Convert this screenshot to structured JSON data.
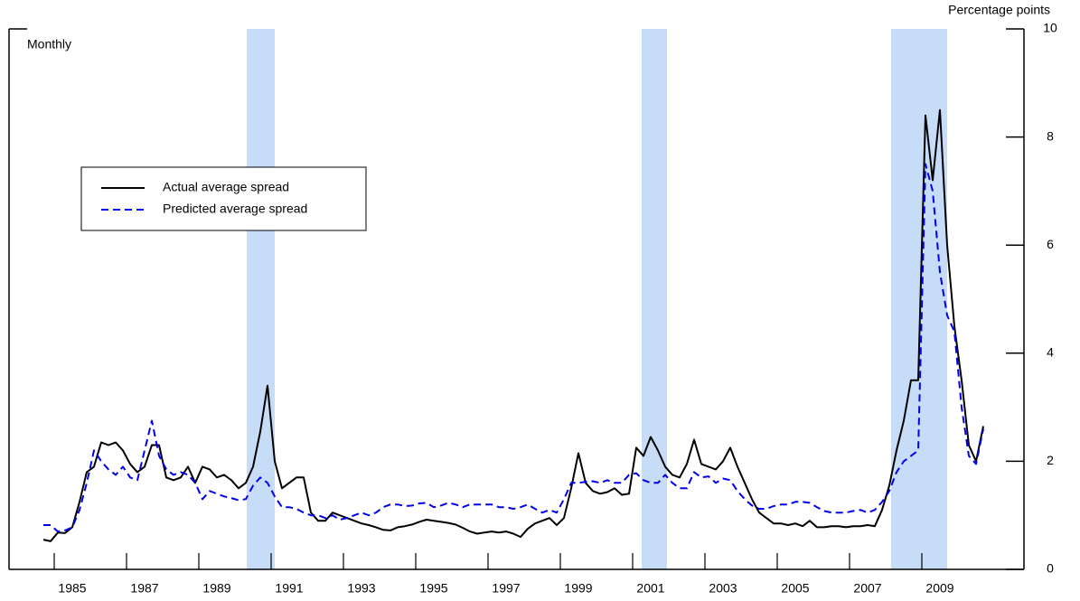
{
  "chart_data": {
    "type": "line",
    "axis_title": "Percentage points",
    "annotation": "Monthly",
    "x": [
      1984.7,
      1984.9,
      1985.1,
      1985.3,
      1985.5,
      1985.7,
      1985.9,
      1986.1,
      1986.3,
      1986.5,
      1986.7,
      1986.9,
      1987.1,
      1987.3,
      1987.5,
      1987.7,
      1987.9,
      1988.1,
      1988.3,
      1988.5,
      1988.7,
      1988.9,
      1989.1,
      1989.3,
      1989.5,
      1989.7,
      1989.9,
      1990.1,
      1990.3,
      1990.5,
      1990.7,
      1990.9,
      1991.1,
      1991.3,
      1991.5,
      1991.7,
      1991.9,
      1992.1,
      1992.3,
      1992.5,
      1992.7,
      1992.9,
      1993.1,
      1993.3,
      1993.5,
      1993.7,
      1993.9,
      1994.1,
      1994.3,
      1994.5,
      1994.7,
      1994.9,
      1995.1,
      1995.3,
      1995.5,
      1995.7,
      1995.9,
      1996.1,
      1996.3,
      1996.5,
      1996.7,
      1996.9,
      1997.1,
      1997.3,
      1997.5,
      1997.7,
      1997.9,
      1998.1,
      1998.3,
      1998.5,
      1998.7,
      1998.9,
      1999.1,
      1999.3,
      1999.5,
      1999.7,
      1999.9,
      2000.1,
      2000.3,
      2000.5,
      2000.7,
      2000.9,
      2001.1,
      2001.3,
      2001.5,
      2001.7,
      2001.9,
      2002.1,
      2002.3,
      2002.5,
      2002.7,
      2002.9,
      2003.1,
      2003.3,
      2003.5,
      2003.7,
      2003.9,
      2004.1,
      2004.3,
      2004.5,
      2004.7,
      2004.9,
      2005.1,
      2005.3,
      2005.5,
      2005.7,
      2005.9,
      2006.1,
      2006.3,
      2006.5,
      2006.7,
      2006.9,
      2007.1,
      2007.3,
      2007.5,
      2007.7,
      2007.9,
      2008.1,
      2008.3,
      2008.5,
      2008.7,
      2008.9,
      2009.1,
      2009.3,
      2009.5,
      2009.7,
      2009.9,
      2010.1,
      2010.3,
      2010.5,
      2010.7
    ],
    "series": [
      {
        "name": "Actual average spread",
        "color": "#000000",
        "dash": false,
        "values": [
          0.55,
          0.52,
          0.68,
          0.67,
          0.78,
          1.25,
          1.8,
          1.9,
          2.35,
          2.3,
          2.35,
          2.2,
          1.95,
          1.8,
          1.9,
          2.3,
          2.3,
          1.7,
          1.65,
          1.7,
          1.9,
          1.6,
          1.9,
          1.85,
          1.7,
          1.75,
          1.65,
          1.5,
          1.6,
          1.9,
          2.55,
          3.4,
          2.0,
          1.5,
          1.6,
          1.7,
          1.7,
          1.05,
          0.9,
          0.9,
          1.05,
          1.0,
          0.95,
          0.9,
          0.85,
          0.82,
          0.78,
          0.73,
          0.72,
          0.78,
          0.8,
          0.83,
          0.88,
          0.92,
          0.9,
          0.88,
          0.86,
          0.83,
          0.77,
          0.7,
          0.66,
          0.68,
          0.7,
          0.68,
          0.7,
          0.66,
          0.6,
          0.75,
          0.85,
          0.9,
          0.95,
          0.82,
          0.95,
          1.5,
          2.15,
          1.6,
          1.45,
          1.4,
          1.43,
          1.5,
          1.38,
          1.4,
          2.25,
          2.1,
          2.45,
          2.2,
          1.9,
          1.75,
          1.7,
          1.95,
          2.4,
          1.95,
          1.9,
          1.85,
          2.0,
          2.25,
          1.9,
          1.6,
          1.3,
          1.05,
          0.95,
          0.85,
          0.85,
          0.82,
          0.85,
          0.8,
          0.9,
          0.78,
          0.78,
          0.8,
          0.8,
          0.78,
          0.8,
          0.8,
          0.82,
          0.8,
          1.1,
          1.55,
          2.2,
          2.75,
          3.5,
          3.5,
          8.4,
          7.2,
          8.5,
          6.0,
          4.5,
          3.5,
          2.3,
          2.0,
          2.65
        ]
      },
      {
        "name": "Predicted average spread",
        "color": "#0000ee",
        "dash": true,
        "values": [
          0.82,
          0.82,
          0.7,
          0.72,
          0.78,
          1.1,
          1.6,
          2.2,
          2.0,
          1.85,
          1.75,
          1.9,
          1.7,
          1.65,
          2.2,
          2.75,
          2.1,
          1.85,
          1.75,
          1.8,
          1.75,
          1.6,
          1.3,
          1.45,
          1.4,
          1.35,
          1.32,
          1.28,
          1.3,
          1.55,
          1.7,
          1.6,
          1.35,
          1.15,
          1.15,
          1.12,
          1.05,
          1.0,
          1.0,
          0.95,
          1.0,
          0.92,
          0.95,
          1.0,
          1.05,
          1.0,
          1.05,
          1.15,
          1.2,
          1.2,
          1.17,
          1.18,
          1.22,
          1.23,
          1.15,
          1.18,
          1.23,
          1.2,
          1.15,
          1.2,
          1.2,
          1.2,
          1.2,
          1.15,
          1.15,
          1.12,
          1.15,
          1.2,
          1.12,
          1.05,
          1.1,
          1.05,
          1.3,
          1.6,
          1.6,
          1.62,
          1.63,
          1.6,
          1.65,
          1.6,
          1.6,
          1.75,
          1.78,
          1.65,
          1.6,
          1.6,
          1.75,
          1.6,
          1.5,
          1.5,
          1.8,
          1.7,
          1.72,
          1.6,
          1.68,
          1.65,
          1.45,
          1.3,
          1.18,
          1.12,
          1.12,
          1.17,
          1.2,
          1.2,
          1.25,
          1.25,
          1.23,
          1.15,
          1.08,
          1.05,
          1.05,
          1.05,
          1.08,
          1.1,
          1.05,
          1.1,
          1.25,
          1.45,
          1.8,
          2.0,
          2.1,
          2.2,
          7.5,
          7.0,
          5.5,
          4.7,
          4.4,
          3.0,
          2.1,
          1.95,
          2.6
        ]
      }
    ],
    "recessions": [
      [
        1990.325,
        1991.1
      ],
      [
        2001.25,
        2001.95
      ],
      [
        2008.15,
        2009.7
      ]
    ],
    "recession_color": "#c6dcf7",
    "xlim": [
      1983.75,
      2011.825
    ],
    "xticks": [
      1985,
      1987,
      1989,
      1991,
      1993,
      1995,
      1997,
      1999,
      2001,
      2003,
      2005,
      2007,
      2009
    ],
    "ylim": [
      0,
      10
    ],
    "yticks": [
      0,
      2,
      4,
      6,
      8,
      10
    ],
    "legend": "upper left"
  }
}
